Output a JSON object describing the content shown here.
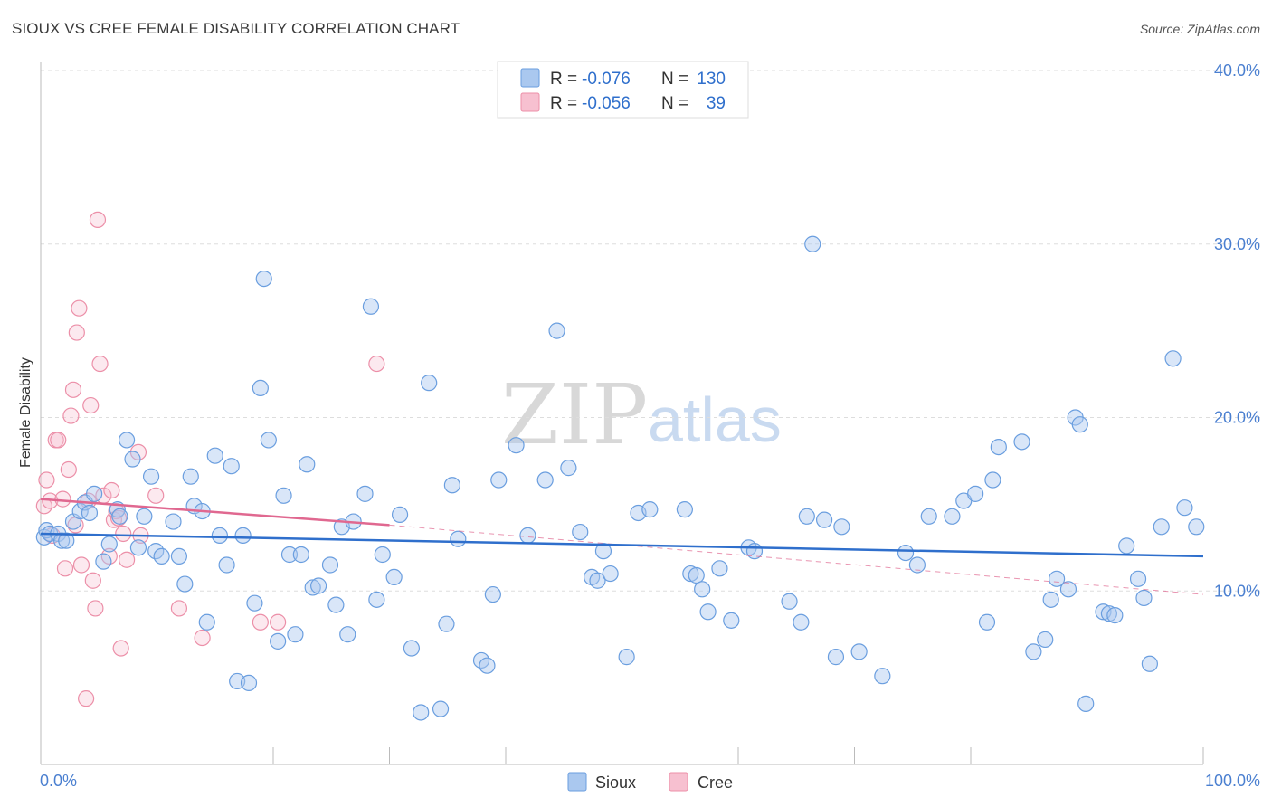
{
  "title": "SIOUX VS CREE FEMALE DISABILITY CORRELATION CHART",
  "source": "Source: ZipAtlas.com",
  "watermark": {
    "zip": "ZIP",
    "atlas": "atlas"
  },
  "colors": {
    "sioux_fill": "#aac8ef",
    "sioux_stroke": "#6a9edf",
    "sioux_line": "#2f6fcc",
    "cree_fill": "#f7c0d0",
    "cree_stroke": "#ec8fa8",
    "cree_line": "#e06890",
    "tick_text": "#4a7fd0",
    "grid": "#dddddd"
  },
  "legend_top": {
    "rows": [
      {
        "series": "Sioux",
        "r_label": "R =",
        "r_value": "-0.076",
        "n_label": "N =",
        "n_value": "130"
      },
      {
        "series": "Cree",
        "r_label": "R =",
        "r_value": "-0.056",
        "n_label": "N =",
        "n_value": "39"
      }
    ]
  },
  "legend_bottom": [
    "Sioux",
    "Cree"
  ],
  "chart_data": {
    "type": "scatter",
    "title": "SIOUX VS CREE FEMALE DISABILITY CORRELATION CHART",
    "xlabel": "",
    "ylabel": "Female Disability",
    "xlim": [
      0,
      100
    ],
    "ylim": [
      0,
      40
    ],
    "x_tick_labels": [
      "0.0%",
      "100.0%"
    ],
    "y_ticks": [
      10,
      20,
      30,
      40
    ],
    "y_tick_labels": [
      "10.0%",
      "20.0%",
      "30.0%",
      "40.0%"
    ],
    "grid": "horizontal dashed",
    "legend": "top-center",
    "series": [
      {
        "name": "Sioux",
        "trend": {
          "x": [
            0,
            100
          ],
          "y": [
            13.3,
            12.0
          ]
        },
        "points": [
          [
            0.3,
            13.1
          ],
          [
            0.5,
            13.5
          ],
          [
            0.8,
            13.3
          ],
          [
            1.5,
            13.3
          ],
          [
            1.8,
            12.9
          ],
          [
            2.2,
            12.9
          ],
          [
            2.8,
            14.0
          ],
          [
            3.4,
            14.6
          ],
          [
            3.8,
            15.1
          ],
          [
            4.2,
            14.5
          ],
          [
            4.6,
            15.6
          ],
          [
            5.4,
            11.7
          ],
          [
            5.9,
            12.7
          ],
          [
            6.6,
            14.7
          ],
          [
            6.8,
            14.3
          ],
          [
            7.4,
            18.7
          ],
          [
            7.9,
            17.6
          ],
          [
            8.4,
            12.5
          ],
          [
            8.9,
            14.3
          ],
          [
            9.5,
            16.6
          ],
          [
            9.9,
            12.3
          ],
          [
            10.4,
            12.0
          ],
          [
            11.4,
            14.0
          ],
          [
            11.9,
            12.0
          ],
          [
            12.4,
            10.4
          ],
          [
            12.9,
            16.6
          ],
          [
            13.2,
            14.9
          ],
          [
            13.9,
            14.6
          ],
          [
            14.3,
            8.2
          ],
          [
            15.0,
            17.8
          ],
          [
            15.4,
            13.2
          ],
          [
            16.0,
            11.5
          ],
          [
            16.4,
            17.2
          ],
          [
            16.9,
            4.8
          ],
          [
            17.4,
            13.2
          ],
          [
            17.9,
            4.7
          ],
          [
            18.4,
            9.3
          ],
          [
            18.9,
            21.7
          ],
          [
            19.2,
            28.0
          ],
          [
            19.6,
            18.7
          ],
          [
            20.4,
            7.1
          ],
          [
            20.9,
            15.5
          ],
          [
            21.4,
            12.1
          ],
          [
            21.9,
            7.5
          ],
          [
            22.4,
            12.1
          ],
          [
            22.9,
            17.3
          ],
          [
            23.4,
            10.2
          ],
          [
            23.9,
            10.3
          ],
          [
            24.9,
            11.5
          ],
          [
            25.4,
            9.2
          ],
          [
            25.9,
            13.7
          ],
          [
            26.4,
            7.5
          ],
          [
            26.9,
            14.0
          ],
          [
            27.9,
            15.6
          ],
          [
            28.4,
            26.4
          ],
          [
            28.9,
            9.5
          ],
          [
            29.4,
            12.1
          ],
          [
            30.4,
            10.8
          ],
          [
            30.9,
            14.4
          ],
          [
            31.9,
            6.7
          ],
          [
            32.7,
            3.0
          ],
          [
            33.4,
            22.0
          ],
          [
            34.4,
            3.2
          ],
          [
            34.9,
            8.1
          ],
          [
            35.4,
            16.1
          ],
          [
            35.9,
            13.0
          ],
          [
            37.9,
            6.0
          ],
          [
            38.4,
            5.7
          ],
          [
            38.9,
            9.8
          ],
          [
            39.4,
            16.4
          ],
          [
            40.9,
            18.4
          ],
          [
            41.9,
            13.2
          ],
          [
            43.4,
            16.4
          ],
          [
            44.4,
            25.0
          ],
          [
            45.4,
            17.1
          ],
          [
            46.4,
            13.4
          ],
          [
            47.4,
            10.8
          ],
          [
            47.9,
            10.6
          ],
          [
            48.4,
            12.3
          ],
          [
            49.0,
            11.0
          ],
          [
            50.4,
            6.2
          ],
          [
            51.4,
            14.5
          ],
          [
            52.4,
            14.7
          ],
          [
            55.4,
            14.7
          ],
          [
            55.9,
            11.0
          ],
          [
            56.4,
            10.9
          ],
          [
            56.9,
            10.1
          ],
          [
            57.4,
            8.8
          ],
          [
            58.4,
            11.3
          ],
          [
            59.4,
            8.3
          ],
          [
            60.9,
            12.5
          ],
          [
            61.4,
            12.3
          ],
          [
            64.4,
            9.4
          ],
          [
            65.4,
            8.2
          ],
          [
            65.9,
            14.3
          ],
          [
            66.4,
            30.0
          ],
          [
            67.4,
            14.1
          ],
          [
            68.4,
            6.2
          ],
          [
            68.9,
            13.7
          ],
          [
            70.4,
            6.5
          ],
          [
            72.4,
            5.1
          ],
          [
            74.4,
            12.2
          ],
          [
            75.4,
            11.5
          ],
          [
            76.4,
            14.3
          ],
          [
            78.4,
            14.3
          ],
          [
            79.4,
            15.2
          ],
          [
            80.4,
            15.6
          ],
          [
            81.4,
            8.2
          ],
          [
            81.9,
            16.4
          ],
          [
            82.4,
            18.3
          ],
          [
            84.4,
            18.6
          ],
          [
            85.4,
            6.5
          ],
          [
            86.4,
            7.2
          ],
          [
            86.9,
            9.5
          ],
          [
            87.4,
            10.7
          ],
          [
            88.4,
            10.1
          ],
          [
            89.0,
            20.0
          ],
          [
            89.4,
            19.6
          ],
          [
            89.9,
            3.5
          ],
          [
            91.4,
            8.8
          ],
          [
            91.9,
            8.7
          ],
          [
            92.4,
            8.6
          ],
          [
            93.4,
            12.6
          ],
          [
            94.4,
            10.7
          ],
          [
            94.9,
            9.6
          ],
          [
            95.4,
            5.8
          ],
          [
            96.4,
            13.7
          ],
          [
            97.4,
            23.4
          ],
          [
            98.4,
            14.8
          ],
          [
            99.4,
            13.7
          ]
        ]
      },
      {
        "name": "Cree",
        "trend": {
          "x": [
            0,
            30
          ],
          "y": [
            15.3,
            13.8
          ]
        },
        "trend_extension": {
          "x": [
            30,
            100
          ],
          "y": [
            13.8,
            9.8
          ]
        },
        "points": [
          [
            0.3,
            14.9
          ],
          [
            0.5,
            16.4
          ],
          [
            0.8,
            15.2
          ],
          [
            1.0,
            13.2
          ],
          [
            1.3,
            18.7
          ],
          [
            1.5,
            18.7
          ],
          [
            1.9,
            15.3
          ],
          [
            2.1,
            11.3
          ],
          [
            2.4,
            17.0
          ],
          [
            2.6,
            20.1
          ],
          [
            2.8,
            21.6
          ],
          [
            3.0,
            13.8
          ],
          [
            3.1,
            24.9
          ],
          [
            3.3,
            26.3
          ],
          [
            3.5,
            11.5
          ],
          [
            3.9,
            3.8
          ],
          [
            4.1,
            15.2
          ],
          [
            4.3,
            20.7
          ],
          [
            4.5,
            10.6
          ],
          [
            4.7,
            9.0
          ],
          [
            4.9,
            31.4
          ],
          [
            5.1,
            23.1
          ],
          [
            5.4,
            15.5
          ],
          [
            5.9,
            12.0
          ],
          [
            6.1,
            15.8
          ],
          [
            6.3,
            14.1
          ],
          [
            6.5,
            14.6
          ],
          [
            6.7,
            14.2
          ],
          [
            6.9,
            6.7
          ],
          [
            7.1,
            13.3
          ],
          [
            7.4,
            11.8
          ],
          [
            8.4,
            18.0
          ],
          [
            8.6,
            13.2
          ],
          [
            9.9,
            15.5
          ],
          [
            11.9,
            9.0
          ],
          [
            13.9,
            7.3
          ],
          [
            18.9,
            8.2
          ],
          [
            20.4,
            8.2
          ],
          [
            28.9,
            23.1
          ]
        ]
      }
    ]
  }
}
